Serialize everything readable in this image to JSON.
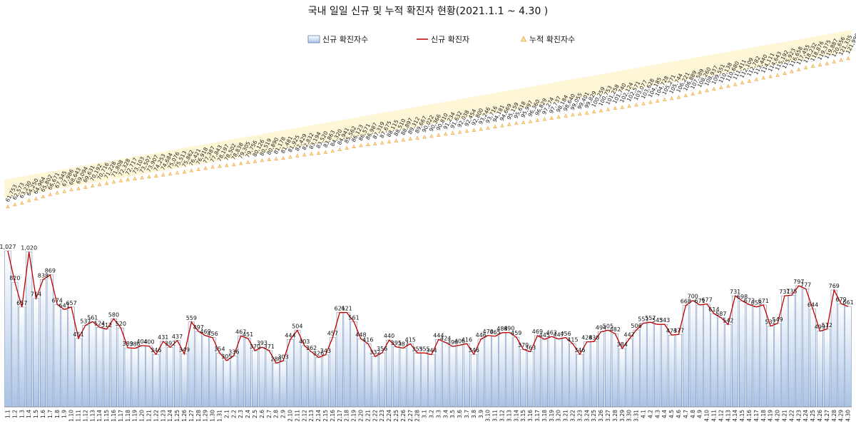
{
  "chart_data": {
    "type": "bar",
    "title": "국내 일일 신규 및 누적 확진자 현황(2021.1.1 ~ 4.30 )",
    "legend": [
      "신규 확진자수",
      "신규 확진자",
      "누적 확진자수"
    ],
    "legend_position": "top",
    "grid": false,
    "colors": {
      "bar_top": "#ffffff",
      "bar_bottom": "#a9c3e6",
      "bar_stroke": "#5b7aa8",
      "line": "#c00000",
      "cumulative_fill": "#f6e49a",
      "cumulative_marker": "#f0a040"
    },
    "dates": [
      "1.1",
      "1.2",
      "1.3",
      "1.4",
      "1.5",
      "1.6",
      "1.7",
      "1.8",
      "1.9",
      "1.10",
      "1.11",
      "1.12",
      "1.13",
      "1.14",
      "1.15",
      "1.16",
      "1.17",
      "1.18",
      "1.19",
      "1.20",
      "1.21",
      "1.22",
      "1.23",
      "1.24",
      "1.25",
      "1.26",
      "1.27",
      "1.28",
      "1.29",
      "1.30",
      "1.31",
      "2.1",
      "2.2",
      "2.3",
      "2.4",
      "2.5",
      "2.6",
      "2.7",
      "2.8",
      "2.9",
      "2.10",
      "2.11",
      "2.12",
      "2.13",
      "2.14",
      "2.15",
      "2.16",
      "2.17",
      "2.18",
      "2.19",
      "2.20",
      "2.21",
      "2.22",
      "2.23",
      "2.24",
      "2.25",
      "2.26",
      "2.27",
      "2.28",
      "3.1",
      "3.2",
      "3.3",
      "3.4",
      "3.5",
      "3.6",
      "3.7",
      "3.8",
      "3.9",
      "3.10",
      "3.11",
      "3.12",
      "3.13",
      "3.14",
      "3.15",
      "3.16",
      "3.17",
      "3.18",
      "3.19",
      "3.20",
      "3.21",
      "3.22",
      "3.23",
      "3.24",
      "3.25",
      "3.26",
      "3.27",
      "3.28",
      "3.29",
      "3.30",
      "3.31",
      "4.1",
      "4.2",
      "4.3",
      "4.4",
      "4.5",
      "4.6",
      "4.7",
      "4.8",
      "4.9",
      "4.10",
      "4.11",
      "4.12",
      "4.13",
      "4.14",
      "4.15",
      "4.16",
      "4.17",
      "4.18",
      "4.19",
      "4.20",
      "4.21",
      "4.22",
      "4.23",
      "4.24",
      "4.25",
      "4.26",
      "4.27",
      "4.28",
      "4.29",
      "4.30"
    ],
    "new_cases": [
      1027,
      820,
      657,
      1020,
      714,
      838,
      869,
      674,
      641,
      657,
      451,
      537,
      561,
      524,
      512,
      580,
      520,
      389,
      386,
      404,
      400,
      346,
      431,
      392,
      437,
      349,
      559,
      497,
      469,
      456,
      354,
      305,
      336,
      467,
      451,
      370,
      393,
      371,
      288,
      303,
      444,
      504,
      403,
      362,
      326,
      343,
      457,
      621,
      621,
      561,
      448,
      416,
      332,
      356,
      440,
      395,
      387,
      415,
      355,
      355,
      344,
      444,
      424,
      398,
      406,
      416,
      346,
      446,
      470,
      465,
      488,
      490,
      459,
      379,
      363,
      469,
      445,
      463,
      447,
      456,
      415,
      346,
      428,
      430,
      494,
      505,
      482,
      384,
      447,
      506,
      551,
      557,
      543,
      543,
      473,
      477,
      668,
      700,
      671,
      677,
      614,
      587,
      542,
      731,
      698,
      673,
      658,
      671,
      532,
      549,
      731,
      735,
      797,
      777,
      644,
      499,
      512,
      769,
      679,
      661
    ],
    "cumulative": [
      "61,753",
      "62,573",
      "63,230",
      "64,250",
      "64,964",
      "65,802",
      "66,671",
      "67,345",
      "67,986",
      "68,643",
      "69,094",
      "69,631",
      "70,192",
      "70,716",
      "71,228",
      "71,808",
      "72,328",
      "72,717",
      "73,103",
      "73,507",
      "73,907",
      "74,253",
      "74,684",
      "75,076",
      "75,513",
      "75,862",
      "76,421",
      "76,918",
      "77,387",
      "77,843",
      "78,197",
      "78,502",
      "78,838",
      "79,305",
      "79,756",
      "80,126",
      "80,519",
      "80,890",
      "81,178",
      "81,481",
      "81,925",
      "82,429",
      "82,832",
      "83,194",
      "83,520",
      "83,863",
      "84,320",
      "84,941",
      "85,562",
      "86,123",
      "86,571",
      "86,987",
      "87,319",
      "87,675",
      "88,115",
      "88,510",
      "88,897",
      "89,312",
      "89,667",
      "90,022",
      "90,366",
      "90,810",
      "91,234",
      "91,632",
      "92,038",
      "92,454",
      "92,800",
      "93,246",
      "93,716",
      "94,181",
      "94,669",
      "95,159",
      "95,618",
      "95,997",
      "96,360",
      "96,829",
      "97,274",
      "97,737",
      "98,184",
      "98,640",
      "99,055",
      "99,401",
      "99,829",
      "100,259",
      "100,753",
      "101,258",
      "101,740",
      "102,124",
      "102,571",
      "103,077",
      "103,628",
      "104,185",
      "104,728",
      "105,271",
      "105,744",
      "106,221",
      "106,889",
      "107,589",
      "108,260",
      "108,937",
      "109,551",
      "110,138",
      "110,680",
      "111,411",
      "112,109",
      "112,782",
      "113,440",
      "114,111",
      "114,643",
      "115,192",
      "115,923",
      "116,658",
      "117,455",
      "118,232",
      "118,876",
      "119,375",
      "119,887",
      "120,656",
      "121,335",
      "121,996"
    ],
    "new_axis_max": 1100
  }
}
